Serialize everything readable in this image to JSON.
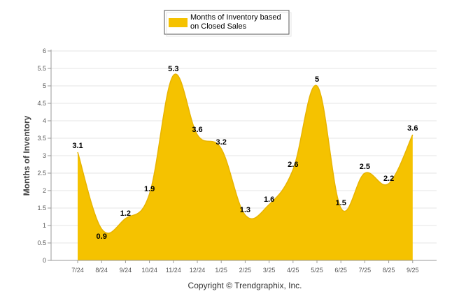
{
  "chart_data": {
    "type": "area",
    "title": "",
    "legend": {
      "lines": [
        "Months of Inventory based",
        "on Closed Sales"
      ],
      "position": "top-center",
      "color": "#F5C200"
    },
    "ylabel": "Months of Inventory",
    "xlabel": "",
    "ylim": [
      0,
      6
    ],
    "yticks": [
      "0",
      "0.5",
      "1",
      "1.5",
      "2",
      "2.5",
      "3",
      "3.5",
      "4",
      "4.5",
      "5",
      "5.5",
      "6"
    ],
    "categories": [
      "7/24",
      "8/24",
      "9/24",
      "10/24",
      "11/24",
      "12/24",
      "1/25",
      "2/25",
      "3/25",
      "4/25",
      "5/25",
      "6/25",
      "7/25",
      "8/25",
      "9/25"
    ],
    "series": [
      {
        "name": "Months of Inventory based on Closed Sales",
        "values": [
          3.1,
          0.9,
          1.2,
          1.9,
          5.3,
          3.6,
          3.2,
          1.3,
          1.6,
          2.6,
          5,
          1.5,
          2.5,
          2.2,
          3.6
        ],
        "labels": [
          "3.1",
          "0.9",
          "1.2",
          "1.9",
          "5.3",
          "3.6",
          "3.2",
          "1.3",
          "1.6",
          "2.6",
          "5",
          "1.5",
          "2.5",
          "2.2",
          "3.6"
        ],
        "color": "#F5C200"
      }
    ],
    "grid": true,
    "copyright": "Copyright © Trendgraphix, Inc."
  }
}
